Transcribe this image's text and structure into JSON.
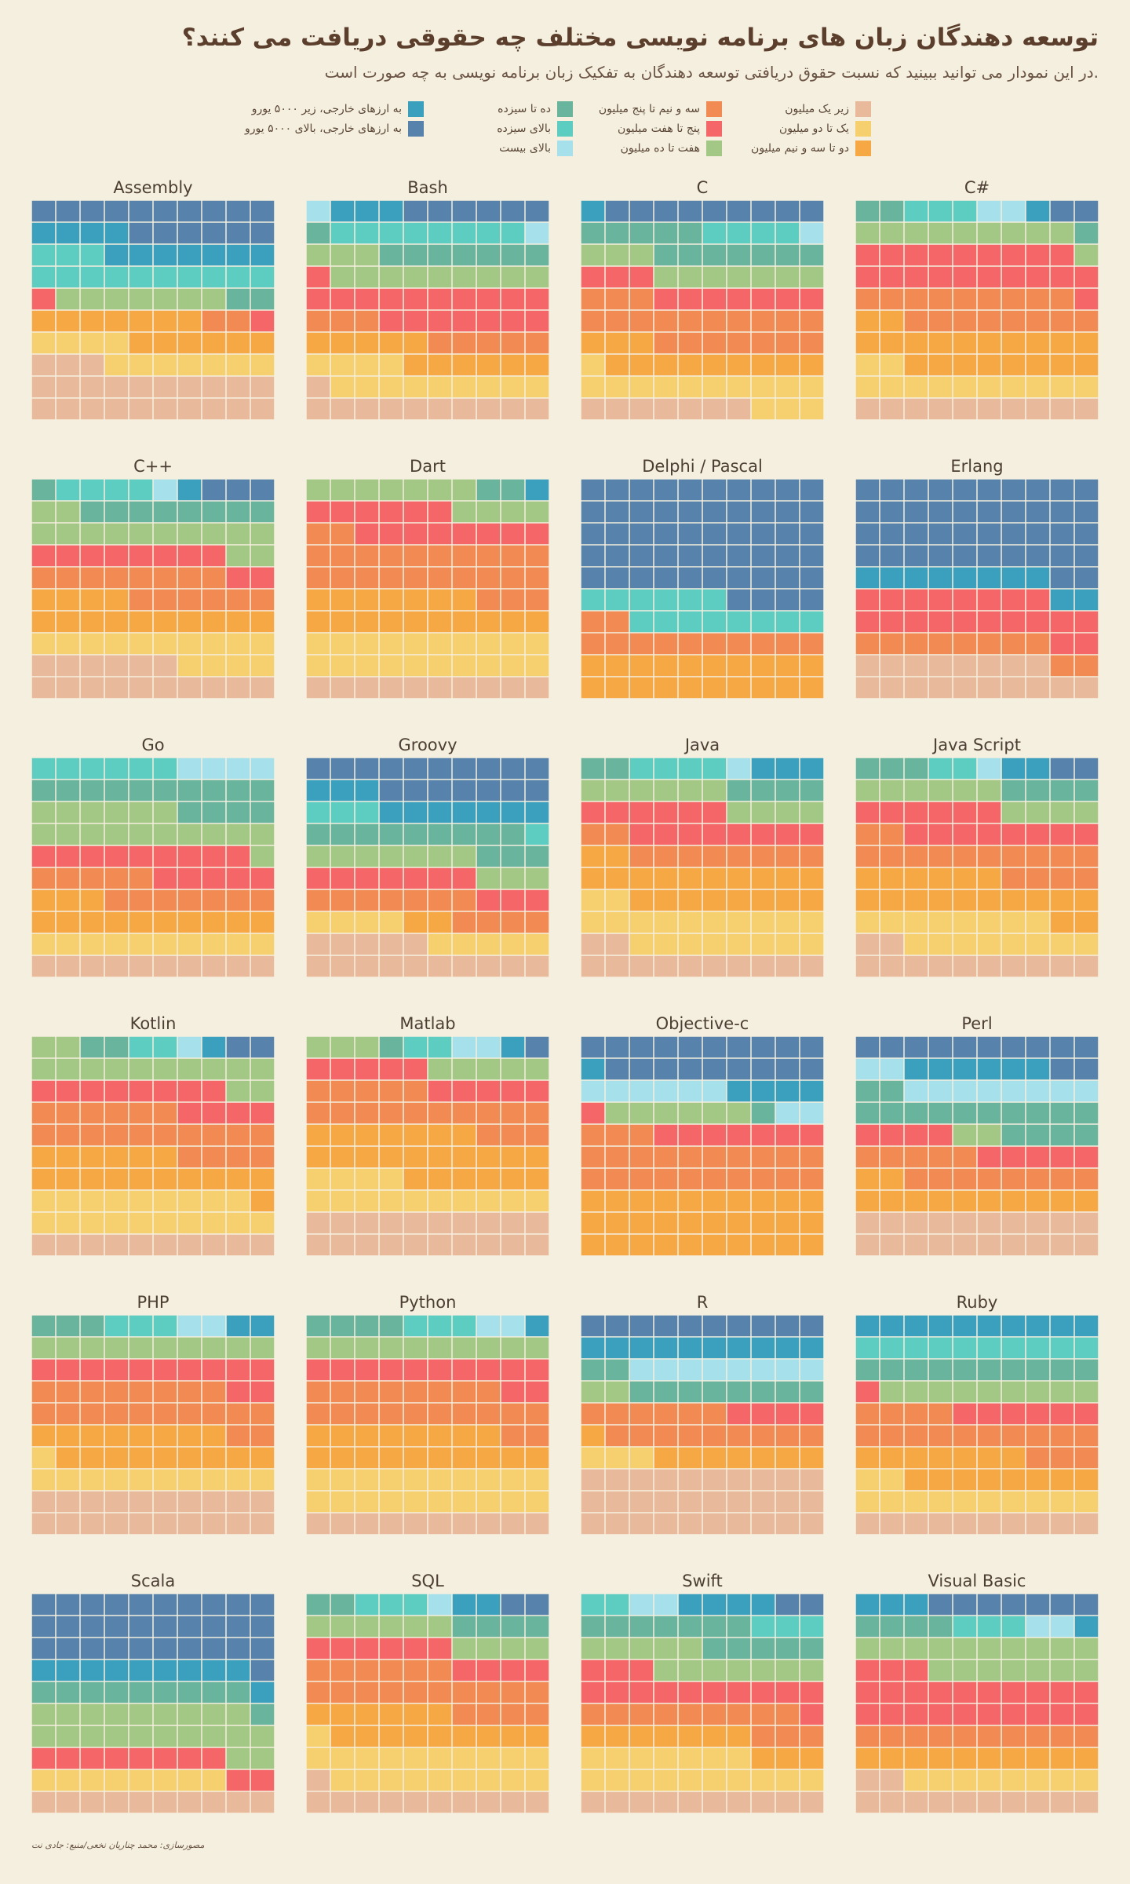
{
  "header": {
    "title": "توسعه دهندگان زبان های برنامه نویسی مختلف چه حقوقی دریافت می کنند؟",
    "subtitle": ".در این نمودار می توانید ببینید که نسبت حقوق دریافتی توسعه دهندگان به تفکیک زبان برنامه نویسی به چه صورت است"
  },
  "credit": "مصورسازی: محمد چناریان نخعی/منبع: جادی نت",
  "categories": [
    {
      "key": "a",
      "label": "زیر یک میلیون",
      "color": "#e9b99b"
    },
    {
      "key": "b",
      "label": "یک تا دو میلیون",
      "color": "#f6d06e"
    },
    {
      "key": "c",
      "label": "دو تا سه و نیم میلیون",
      "color": "#f5a843"
    },
    {
      "key": "d",
      "label": "سه و نیم تا پنج میلیون",
      "color": "#f28b53"
    },
    {
      "key": "e",
      "label": "پنج تا هفت میلیون",
      "color": "#f46667"
    },
    {
      "key": "f",
      "label": "هفت تا ده میلیون",
      "color": "#a3c785"
    },
    {
      "key": "g",
      "label": "ده تا سیزده",
      "color": "#68b49c"
    },
    {
      "key": "h",
      "label": "بالای سیزده",
      "color": "#5ccdc0"
    },
    {
      "key": "i",
      "label": "بالای بیست",
      "color": "#a6e0ea"
    },
    {
      "key": "j",
      "label": "به ارزهای خارجی، زیر ۵۰۰۰ یورو",
      "color": "#3aa0bd"
    },
    {
      "key": "k",
      "label": "به ارزهای خارجی، بالای ۵۰۰۰ یورو",
      "color": "#5782ab"
    }
  ],
  "chart_data": {
    "type": "waffle",
    "grid": "10x10",
    "unit": "cells out of 100",
    "order_bottom_to_top": [
      "a",
      "b",
      "c",
      "d",
      "e",
      "f",
      "g",
      "h",
      "i",
      "j",
      "k"
    ],
    "panels": [
      {
        "name": "Assembly",
        "counts": [
          23,
          11,
          13,
          2,
          2,
          7,
          2,
          13,
          0,
          11,
          16
        ]
      },
      {
        "name": "Bash",
        "counts": [
          11,
          13,
          11,
          8,
          18,
          12,
          8,
          8,
          2,
          3,
          6
        ]
      },
      {
        "name": "C",
        "counts": [
          7,
          14,
          12,
          20,
          10,
          10,
          12,
          4,
          1,
          1,
          9
        ]
      },
      {
        "name": "C#",
        "counts": [
          10,
          12,
          20,
          17,
          20,
          10,
          3,
          3,
          2,
          1,
          2
        ]
      },
      {
        "name": "C++",
        "counts": [
          16,
          14,
          14,
          14,
          10,
          14,
          9,
          4,
          1,
          1,
          3
        ]
      },
      {
        "name": "Dart",
        "counts": [
          10,
          20,
          17,
          25,
          14,
          11,
          2,
          0,
          0,
          1,
          0
        ]
      },
      {
        "name": "Delphi / Pascal",
        "counts": [
          0,
          0,
          20,
          12,
          0,
          0,
          0,
          14,
          0,
          0,
          54
        ]
      },
      {
        "name": "Erlang",
        "counts": [
          18,
          0,
          0,
          10,
          20,
          0,
          0,
          0,
          0,
          10,
          42
        ]
      },
      {
        "name": "Go",
        "counts": [
          10,
          10,
          13,
          12,
          14,
          17,
          14,
          6,
          4,
          0,
          0
        ]
      },
      {
        "name": "Groovy",
        "counts": [
          15,
          9,
          2,
          11,
          10,
          10,
          12,
          4,
          0,
          10,
          17
        ]
      },
      {
        "name": "Java",
        "counts": [
          12,
          20,
          20,
          10,
          14,
          10,
          6,
          4,
          1,
          3,
          0
        ]
      },
      {
        "name": "Java Script",
        "counts": [
          12,
          16,
          18,
          16,
          14,
          10,
          7,
          2,
          1,
          2,
          2
        ]
      },
      {
        "name": "Kotlin",
        "counts": [
          10,
          19,
          17,
          20,
          12,
          14,
          2,
          2,
          1,
          1,
          2
        ]
      },
      {
        "name": "Matlab",
        "counts": [
          20,
          14,
          23,
          18,
          10,
          8,
          1,
          2,
          2,
          1,
          1
        ]
      },
      {
        "name": "Objective-c",
        "counts": [
          0,
          0,
          30,
          23,
          8,
          6,
          1,
          0,
          8,
          5,
          19
        ]
      },
      {
        "name": "Perl",
        "counts": [
          20,
          0,
          12,
          13,
          9,
          2,
          16,
          0,
          10,
          6,
          12
        ]
      },
      {
        "name": "PHP",
        "counts": [
          20,
          11,
          17,
          20,
          12,
          10,
          3,
          3,
          2,
          2,
          0
        ]
      },
      {
        "name": "Python",
        "counts": [
          10,
          20,
          18,
          20,
          12,
          10,
          4,
          3,
          2,
          1,
          0
        ]
      },
      {
        "name": "R",
        "counts": [
          30,
          3,
          8,
          15,
          4,
          2,
          10,
          0,
          8,
          10,
          10
        ]
      },
      {
        "name": "Ruby",
        "counts": [
          10,
          12,
          15,
          17,
          7,
          9,
          10,
          10,
          0,
          10,
          0
        ]
      },
      {
        "name": "Scala",
        "counts": [
          10,
          8,
          0,
          0,
          10,
          21,
          10,
          0,
          0,
          10,
          31
        ]
      },
      {
        "name": "SQL",
        "counts": [
          11,
          20,
          15,
          20,
          10,
          10,
          6,
          3,
          1,
          2,
          2
        ]
      },
      {
        "name": "Swift",
        "counts": [
          10,
          17,
          10,
          12,
          14,
          12,
          12,
          5,
          2,
          4,
          2
        ]
      },
      {
        "name": "Visual Basic",
        "counts": [
          12,
          8,
          10,
          10,
          23,
          17,
          4,
          3,
          2,
          4,
          7
        ]
      }
    ]
  }
}
